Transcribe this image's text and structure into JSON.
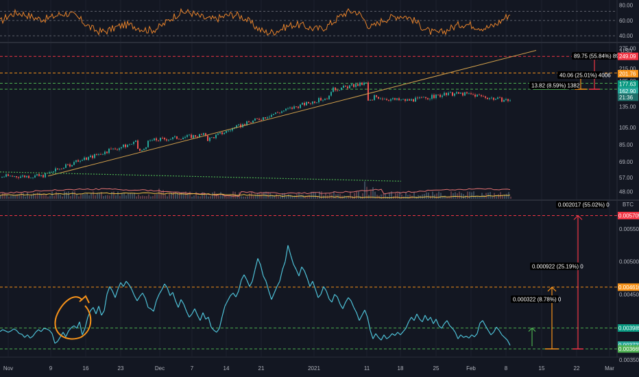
{
  "chart_data": [
    {
      "type": "line",
      "panel": "rsi",
      "ylim": [
        33,
        85
      ],
      "y_ticks": [
        "80.00",
        "60.00",
        "40.00"
      ],
      "levels": [
        72,
        60,
        40
      ],
      "series": [
        {
          "color": "#e8832b"
        }
      ]
    },
    {
      "type": "candlestick",
      "panel": "price",
      "ylim": [
        44,
        290
      ],
      "y_ticks": [
        "275.00",
        "245.00",
        "215.00",
        "185.00",
        "155.00",
        "135.00",
        "105.00",
        "85.00",
        "69.00",
        "57.00",
        "48.00"
      ],
      "currency": "USD",
      "price_tags": [
        {
          "text": "249.09",
          "value": 249.09,
          "color": "#f23645"
        },
        {
          "text": "201.76",
          "value": 201.76,
          "color": "#f7931a"
        },
        {
          "text": "177.63",
          "value": 177.63,
          "color": "#089981"
        },
        {
          "text": "162.90",
          "value": 162.9,
          "color": "#26a69a"
        },
        {
          "text": "21:36",
          "value": 151.5,
          "color": "#1f6f6a"
        }
      ],
      "levels": [
        {
          "value": 249.09,
          "color": "#f23645"
        },
        {
          "value": 203.5,
          "color": "#f7931a"
        },
        {
          "value": 179.5,
          "color": "#4caf50"
        },
        {
          "value": 167,
          "color": "#4caf50"
        }
      ],
      "measurements": [
        {
          "label": "13.82 (8.59%) 1382",
          "color": "#4caf50"
        },
        {
          "label": "40.06 (25.01%) 4006",
          "color": "#f7931a"
        },
        {
          "label": "89.75 (55.84%) 8975",
          "color": "#f23645"
        }
      ]
    },
    {
      "type": "line",
      "panel": "ratio",
      "currency": "BTC",
      "ylim": [
        0.00355,
        0.00592
      ],
      "y_ticks": [
        "0.005500",
        "0.005000",
        "0.004500",
        "0.004000",
        "0.003500"
      ],
      "price_tags": [
        {
          "text": "0.005705",
          "value": 0.005705,
          "color": "#f23645"
        },
        {
          "text": "0.004610",
          "value": 0.00461,
          "color": "#f7931a"
        },
        {
          "text": "0.003985",
          "value": 0.003985,
          "color": "#089981"
        },
        {
          "text": "0.003723",
          "value": 0.003723,
          "color": "#26a69a"
        },
        {
          "text": "0.003665",
          "value": 0.003665,
          "color": "#4caf50"
        }
      ],
      "levels": [
        {
          "value": 0.005705,
          "color": "#f23645"
        },
        {
          "value": 0.00461,
          "color": "#f7931a"
        },
        {
          "value": 0.003985,
          "color": "#4caf50"
        },
        {
          "value": 0.003665,
          "color": "#4caf50"
        }
      ],
      "measurements": [
        {
          "label": "0.000322 (8.78%) 0",
          "color": "#4caf50"
        },
        {
          "label": "0.000922 (25.19%) 0",
          "color": "#f7931a"
        },
        {
          "label": "0.002017 (55.02%) 0",
          "color": "#f23645"
        }
      ],
      "series": [
        {
          "color": "#4fc3d9",
          "points": [
            [
              0,
              0.00393
            ],
            [
              4,
              0.00396
            ],
            [
              8,
              0.00394
            ],
            [
              12,
              0.00392
            ],
            [
              16,
              0.00394
            ],
            [
              20,
              0.00397
            ],
            [
              24,
              0.00395
            ],
            [
              28,
              0.0039
            ],
            [
              32,
              0.00389
            ],
            [
              36,
              0.00384
            ],
            [
              40,
              0.00388
            ],
            [
              44,
              0.00383
            ],
            [
              48,
              0.00386
            ],
            [
              52,
              0.00392
            ],
            [
              56,
              0.00396
            ],
            [
              60,
              0.00393
            ],
            [
              64,
              0.00398
            ],
            [
              68,
              0.00397
            ],
            [
              72,
              0.00395
            ],
            [
              76,
              0.0039
            ],
            [
              80,
              0.00375
            ],
            [
              84,
              0.00378
            ],
            [
              88,
              0.00385
            ],
            [
              92,
              0.00392
            ],
            [
              96,
              0.00385
            ],
            [
              100,
              0.00394
            ],
            [
              104,
              0.00399
            ],
            [
              108,
              0.00402
            ],
            [
              112,
              0.00398
            ],
            [
              116,
              0.00408
            ],
            [
              120,
              0.00388
            ],
            [
              124,
              0.00398
            ],
            [
              128,
              0.00415
            ],
            [
              132,
              0.00425
            ],
            [
              136,
              0.0043
            ],
            [
              140,
              0.0042
            ],
            [
              144,
              0.00432
            ],
            [
              148,
              0.00418
            ],
            [
              152,
              0.00425
            ],
            [
              156,
              0.0045
            ],
            [
              160,
              0.00462
            ],
            [
              164,
              0.00455
            ],
            [
              168,
              0.00445
            ],
            [
              172,
              0.00458
            ],
            [
              176,
              0.00468
            ],
            [
              180,
              0.00462
            ],
            [
              184,
              0.0047
            ],
            [
              188,
              0.00465
            ],
            [
              192,
              0.00458
            ],
            [
              196,
              0.00448
            ],
            [
              200,
              0.0044
            ],
            [
              204,
              0.00447
            ],
            [
              208,
              0.00452
            ],
            [
              212,
              0.00444
            ],
            [
              216,
              0.0043
            ],
            [
              220,
              0.00428
            ],
            [
              224,
              0.00424
            ],
            [
              228,
              0.0044
            ],
            [
              232,
              0.0045
            ],
            [
              236,
              0.00457
            ],
            [
              240,
              0.00466
            ],
            [
              244,
              0.0046
            ],
            [
              248,
              0.00448
            ],
            [
              252,
              0.00453
            ],
            [
              256,
              0.0044
            ],
            [
              260,
              0.0043
            ],
            [
              264,
              0.00442
            ],
            [
              268,
              0.00435
            ],
            [
              272,
              0.00424
            ],
            [
              276,
              0.00415
            ],
            [
              280,
              0.0042
            ],
            [
              284,
              0.00428
            ],
            [
              288,
              0.00418
            ],
            [
              292,
              0.0041
            ],
            [
              296,
              0.00422
            ],
            [
              300,
              0.00412
            ],
            [
              304,
              0.00415
            ],
            [
              308,
              0.004
            ],
            [
              312,
              0.00395
            ],
            [
              316,
              0.00392
            ],
            [
              320,
              0.00398
            ],
            [
              324,
              0.00416
            ],
            [
              328,
              0.00432
            ],
            [
              332,
              0.0044
            ],
            [
              336,
              0.00448
            ],
            [
              340,
              0.00452
            ],
            [
              344,
              0.00446
            ],
            [
              348,
              0.00455
            ],
            [
              352,
              0.00472
            ],
            [
              356,
              0.0048
            ],
            [
              360,
              0.00472
            ],
            [
              364,
              0.00462
            ],
            [
              368,
              0.0047
            ],
            [
              372,
              0.00488
            ],
            [
              376,
              0.00505
            ],
            [
              380,
              0.00495
            ],
            [
              384,
              0.00478
            ],
            [
              388,
              0.0047
            ],
            [
              392,
              0.00455
            ],
            [
              396,
              0.00442
            ],
            [
              400,
              0.00452
            ],
            [
              404,
              0.00462
            ],
            [
              408,
              0.0047
            ],
            [
              412,
              0.00488
            ],
            [
              416,
              0.005
            ],
            [
              420,
              0.00525
            ],
            [
              424,
              0.0051
            ],
            [
              428,
              0.00496
            ],
            [
              432,
              0.00488
            ],
            [
              436,
              0.00478
            ],
            [
              440,
              0.00492
            ],
            [
              444,
              0.00486
            ],
            [
              448,
              0.00475
            ],
            [
              452,
              0.00462
            ],
            [
              456,
              0.0047
            ],
            [
              460,
              0.00458
            ],
            [
              464,
              0.00445
            ],
            [
              468,
              0.0045
            ],
            [
              472,
              0.00462
            ],
            [
              476,
              0.00455
            ],
            [
              480,
              0.00443
            ],
            [
              484,
              0.00438
            ],
            [
              488,
              0.0045
            ],
            [
              492,
              0.00446
            ],
            [
              496,
              0.00435
            ],
            [
              500,
              0.00428
            ],
            [
              504,
              0.00438
            ],
            [
              508,
              0.00445
            ],
            [
              512,
              0.0044
            ],
            [
              516,
              0.0043
            ],
            [
              520,
              0.00422
            ],
            [
              524,
              0.0041
            ],
            [
              528,
              0.00418
            ],
            [
              532,
              0.00426
            ],
            [
              536,
              0.00415
            ],
            [
              540,
              0.00395
            ],
            [
              544,
              0.00382
            ],
            [
              548,
              0.0039
            ],
            [
              552,
              0.00384
            ],
            [
              556,
              0.0038
            ],
            [
              560,
              0.00388
            ],
            [
              564,
              0.00382
            ],
            [
              568,
              0.00385
            ],
            [
              572,
              0.0039
            ],
            [
              576,
              0.00387
            ],
            [
              580,
              0.00392
            ],
            [
              584,
              0.00388
            ],
            [
              588,
              0.00393
            ],
            [
              592,
              0.00398
            ],
            [
              596,
              0.00408
            ],
            [
              600,
              0.00415
            ],
            [
              604,
              0.0041
            ],
            [
              608,
              0.0042
            ],
            [
              612,
              0.00412
            ],
            [
              616,
              0.00408
            ],
            [
              620,
              0.00418
            ],
            [
              624,
              0.0041
            ],
            [
              628,
              0.00415
            ],
            [
              632,
              0.00405
            ],
            [
              636,
              0.00412
            ],
            [
              640,
              0.00402
            ],
            [
              644,
              0.00398
            ],
            [
              648,
              0.00405
            ],
            [
              652,
              0.0041
            ],
            [
              656,
              0.00402
            ],
            [
              660,
              0.00398
            ],
            [
              664,
              0.00392
            ],
            [
              668,
              0.00382
            ],
            [
              672,
              0.00388
            ],
            [
              676,
              0.00384
            ],
            [
              680,
              0.00386
            ],
            [
              684,
              0.00383
            ],
            [
              688,
              0.00388
            ],
            [
              692,
              0.00385
            ],
            [
              696,
              0.0039
            ],
            [
              700,
              0.00406
            ],
            [
              704,
              0.0041
            ],
            [
              708,
              0.00402
            ],
            [
              712,
              0.00395
            ],
            [
              716,
              0.00388
            ],
            [
              720,
              0.00392
            ],
            [
              724,
              0.004
            ],
            [
              728,
              0.00395
            ],
            [
              732,
              0.00388
            ],
            [
              736,
              0.00384
            ],
            [
              740,
              0.0038
            ],
            [
              744,
              0.00372
            ]
          ]
        }
      ]
    }
  ],
  "x_axis": {
    "labels": [
      {
        "text": "Nov",
        "x": 12
      },
      {
        "text": "9",
        "x": 74
      },
      {
        "text": "16",
        "x": 125
      },
      {
        "text": "23",
        "x": 176
      },
      {
        "text": "Dec",
        "x": 233
      },
      {
        "text": "7",
        "x": 280
      },
      {
        "text": "14",
        "x": 330
      },
      {
        "text": "21",
        "x": 381
      },
      {
        "text": "2021",
        "x": 458
      },
      {
        "text": "11",
        "x": 535
      },
      {
        "text": "18",
        "x": 584
      },
      {
        "text": "25",
        "x": 636
      },
      {
        "text": "Feb",
        "x": 687
      },
      {
        "text": "8",
        "x": 738
      },
      {
        "text": "15",
        "x": 790
      },
      {
        "text": "22",
        "x": 841
      },
      {
        "text": "Mar",
        "x": 889
      }
    ]
  }
}
